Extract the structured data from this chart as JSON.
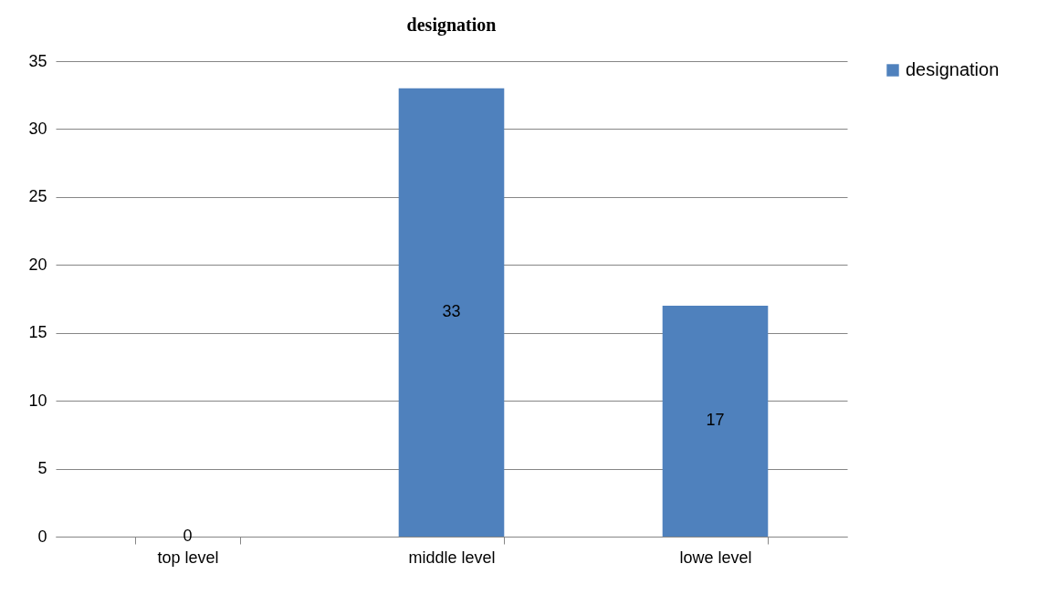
{
  "chart_data": {
    "type": "bar",
    "title": "designation",
    "categories": [
      "top level",
      "middle level",
      "lowe level"
    ],
    "series": [
      {
        "name": "designation",
        "color": "#4f81bd",
        "values": [
          0,
          33,
          17
        ]
      }
    ],
    "ylim": [
      0,
      35
    ],
    "yticks": [
      0,
      5,
      10,
      15,
      20,
      25,
      30,
      35
    ],
    "grid": "y",
    "legend": "right",
    "data_labels": true
  }
}
